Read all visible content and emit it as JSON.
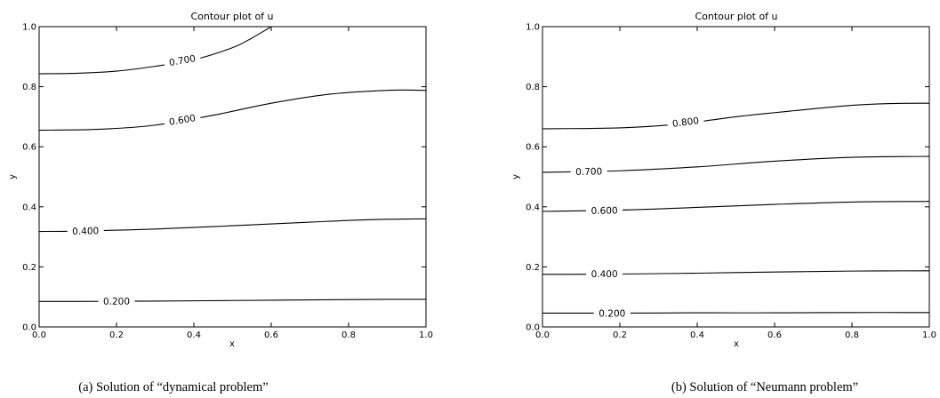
{
  "chart_data": [
    {
      "type": "contour",
      "title": "Contour plot of u",
      "xlabel": "x",
      "ylabel": "y",
      "xlim": [
        0.0,
        1.0
      ],
      "ylim": [
        0.0,
        1.0
      ],
      "xticks": [
        "0.0",
        "0.2",
        "0.4",
        "0.6",
        "0.8",
        "1.0"
      ],
      "yticks": [
        "0.0",
        "0.2",
        "0.4",
        "0.6",
        "0.8",
        "1.0"
      ],
      "caption": "(a)  Solution of “dynamical problem”",
      "contours": [
        {
          "level": "0.200",
          "points": [
            [
              0,
              0.085
            ],
            [
              0.1,
              0.085
            ],
            [
              0.3,
              0.086
            ],
            [
              0.5,
              0.088
            ],
            [
              0.7,
              0.09
            ],
            [
              0.9,
              0.092
            ],
            [
              1.0,
              0.092
            ]
          ],
          "label_at": [
            0.2,
            0.086
          ]
        },
        {
          "level": "0.400",
          "points": [
            [
              0,
              0.318
            ],
            [
              0.1,
              0.319
            ],
            [
              0.3,
              0.326
            ],
            [
              0.5,
              0.337
            ],
            [
              0.7,
              0.349
            ],
            [
              0.85,
              0.357
            ],
            [
              1.0,
              0.36
            ]
          ],
          "label_at": [
            0.12,
            0.32
          ]
        },
        {
          "level": "0.600",
          "points": [
            [
              0,
              0.655
            ],
            [
              0.15,
              0.658
            ],
            [
              0.3,
              0.672
            ],
            [
              0.45,
              0.705
            ],
            [
              0.6,
              0.745
            ],
            [
              0.75,
              0.775
            ],
            [
              0.9,
              0.788
            ],
            [
              1.0,
              0.788
            ]
          ],
          "label_at": [
            0.37,
            0.69
          ]
        },
        {
          "level": "0.700",
          "points": [
            [
              0,
              0.843
            ],
            [
              0.1,
              0.845
            ],
            [
              0.2,
              0.852
            ],
            [
              0.3,
              0.868
            ],
            [
              0.4,
              0.89
            ],
            [
              0.5,
              0.93
            ],
            [
              0.55,
              0.962
            ],
            [
              0.6,
              1.0
            ]
          ],
          "label_at": [
            0.37,
            0.888
          ]
        }
      ]
    },
    {
      "type": "contour",
      "title": "Contour plot of u",
      "xlabel": "x",
      "ylabel": "y",
      "xlim": [
        0.0,
        1.0
      ],
      "ylim": [
        0.0,
        1.0
      ],
      "xticks": [
        "0.0",
        "0.2",
        "0.4",
        "0.6",
        "0.8",
        "1.0"
      ],
      "yticks": [
        "0.0",
        "0.2",
        "0.4",
        "0.6",
        "0.8",
        "1.0"
      ],
      "caption": "(b)  Solution of “Neumann problem”",
      "contours": [
        {
          "level": "0.200",
          "points": [
            [
              0,
              0.046
            ],
            [
              0.2,
              0.046
            ],
            [
              0.4,
              0.047
            ],
            [
              0.6,
              0.047
            ],
            [
              0.8,
              0.048
            ],
            [
              1.0,
              0.048
            ]
          ],
          "label_at": [
            0.18,
            0.046
          ]
        },
        {
          "level": "0.400",
          "points": [
            [
              0,
              0.175
            ],
            [
              0.2,
              0.176
            ],
            [
              0.4,
              0.179
            ],
            [
              0.6,
              0.183
            ],
            [
              0.8,
              0.186
            ],
            [
              1.0,
              0.187
            ]
          ],
          "label_at": [
            0.16,
            0.177
          ]
        },
        {
          "level": "0.600",
          "points": [
            [
              0,
              0.385
            ],
            [
              0.2,
              0.389
            ],
            [
              0.4,
              0.398
            ],
            [
              0.6,
              0.408
            ],
            [
              0.8,
              0.416
            ],
            [
              1.0,
              0.418
            ]
          ],
          "label_at": [
            0.16,
            0.388
          ]
        },
        {
          "level": "0.700",
          "points": [
            [
              0,
              0.515
            ],
            [
              0.2,
              0.52
            ],
            [
              0.4,
              0.533
            ],
            [
              0.6,
              0.552
            ],
            [
              0.8,
              0.565
            ],
            [
              1.0,
              0.568
            ]
          ],
          "label_at": [
            0.12,
            0.518
          ]
        },
        {
          "level": "0.800",
          "points": [
            [
              0,
              0.66
            ],
            [
              0.2,
              0.663
            ],
            [
              0.35,
              0.675
            ],
            [
              0.5,
              0.7
            ],
            [
              0.65,
              0.72
            ],
            [
              0.8,
              0.738
            ],
            [
              0.9,
              0.744
            ],
            [
              1.0,
              0.745
            ]
          ],
          "label_at": [
            0.37,
            0.683
          ]
        }
      ]
    }
  ]
}
